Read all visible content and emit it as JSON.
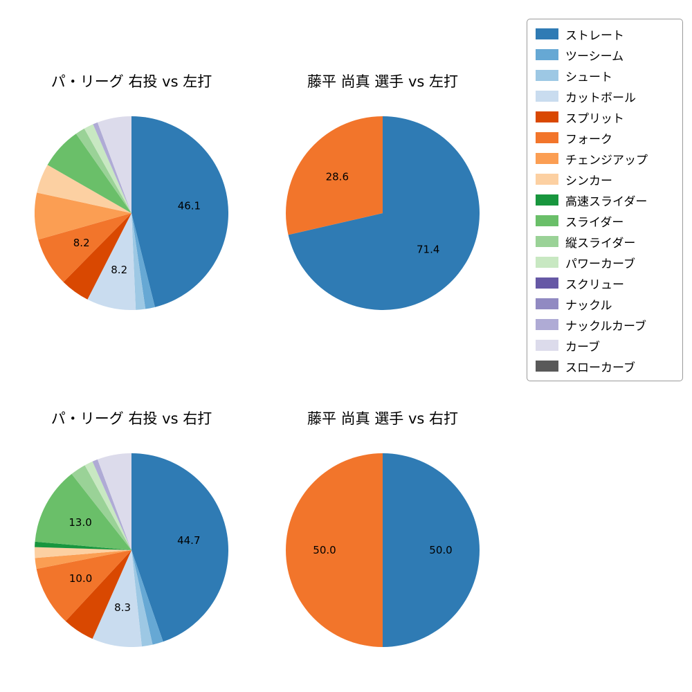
{
  "legend": {
    "position": "top-right",
    "items": [
      {
        "label": "ストレート",
        "color": "#2f7bb4"
      },
      {
        "label": "ツーシーム",
        "color": "#66a8d4"
      },
      {
        "label": "シュート",
        "color": "#9dc8e4"
      },
      {
        "label": "カットボール",
        "color": "#c9dcef"
      },
      {
        "label": "スプリット",
        "color": "#d94801"
      },
      {
        "label": "フォーク",
        "color": "#f2752b"
      },
      {
        "label": "チェンジアップ",
        "color": "#fb9e53"
      },
      {
        "label": "シンカー",
        "color": "#fcd0a2"
      },
      {
        "label": "高速スライダー",
        "color": "#18963e"
      },
      {
        "label": "スライダー",
        "color": "#6abf69"
      },
      {
        "label": "縦スライダー",
        "color": "#9ad297"
      },
      {
        "label": "パワーカーブ",
        "color": "#c8e8c2"
      },
      {
        "label": "スクリュー",
        "color": "#6658a5"
      },
      {
        "label": "ナックル",
        "color": "#918ac2"
      },
      {
        "label": "ナックルカーブ",
        "color": "#afabd5"
      },
      {
        "label": "カーブ",
        "color": "#dcdbeb"
      },
      {
        "label": "スローカーブ",
        "color": "#595959"
      }
    ]
  },
  "chart_data": [
    {
      "type": "pie",
      "title": "パ・リーグ 右投 vs 左打",
      "start_angle": "top",
      "direction": "clockwise",
      "slices": [
        {
          "name": "ストレート",
          "value": 46.1,
          "label": "46.1"
        },
        {
          "name": "ツーシーム",
          "value": 1.6
        },
        {
          "name": "シュート",
          "value": 1.6
        },
        {
          "name": "カットボール",
          "value": 8.2,
          "label": "8.2"
        },
        {
          "name": "スプリット",
          "value": 4.9
        },
        {
          "name": "フォーク",
          "value": 8.2,
          "label": "8.2"
        },
        {
          "name": "チェンジアップ",
          "value": 7.8
        },
        {
          "name": "シンカー",
          "value": 4.9
        },
        {
          "name": "スライダー",
          "value": 7.0
        },
        {
          "name": "縦スライダー",
          "value": 1.6
        },
        {
          "name": "パワーカーブ",
          "value": 1.6
        },
        {
          "name": "ナックルカーブ",
          "value": 0.8
        },
        {
          "name": "カーブ",
          "value": 5.7
        }
      ]
    },
    {
      "type": "pie",
      "title": "藤平 尚真 選手 vs 左打",
      "start_angle": "top",
      "direction": "clockwise",
      "slices": [
        {
          "name": "ストレート",
          "value": 71.4,
          "label": "71.4"
        },
        {
          "name": "フォーク",
          "value": 28.6,
          "label": "28.6"
        }
      ]
    },
    {
      "type": "pie",
      "title": "パ・リーグ 右投 vs 右打",
      "start_angle": "top",
      "direction": "clockwise",
      "slices": [
        {
          "name": "ストレート",
          "value": 44.7,
          "label": "44.7"
        },
        {
          "name": "ツーシーム",
          "value": 1.8
        },
        {
          "name": "シュート",
          "value": 1.8
        },
        {
          "name": "カットボール",
          "value": 8.3,
          "label": "8.3"
        },
        {
          "name": "スプリット",
          "value": 5.3
        },
        {
          "name": "フォーク",
          "value": 10.0,
          "label": "10.0"
        },
        {
          "name": "チェンジアップ",
          "value": 1.8
        },
        {
          "name": "シンカー",
          "value": 1.8
        },
        {
          "name": "高速スライダー",
          "value": 0.9
        },
        {
          "name": "スライダー",
          "value": 13.0,
          "label": "13.0"
        },
        {
          "name": "縦スライダー",
          "value": 2.6
        },
        {
          "name": "パワーカーブ",
          "value": 1.4
        },
        {
          "name": "ナックルカーブ",
          "value": 0.9
        },
        {
          "name": "カーブ",
          "value": 5.7
        }
      ]
    },
    {
      "type": "pie",
      "title": "藤平 尚真 選手 vs 右打",
      "start_angle": "top",
      "direction": "clockwise",
      "slices": [
        {
          "name": "ストレート",
          "value": 50.0,
          "label": "50.0"
        },
        {
          "name": "フォーク",
          "value": 50.0,
          "label": "50.0"
        }
      ]
    }
  ]
}
